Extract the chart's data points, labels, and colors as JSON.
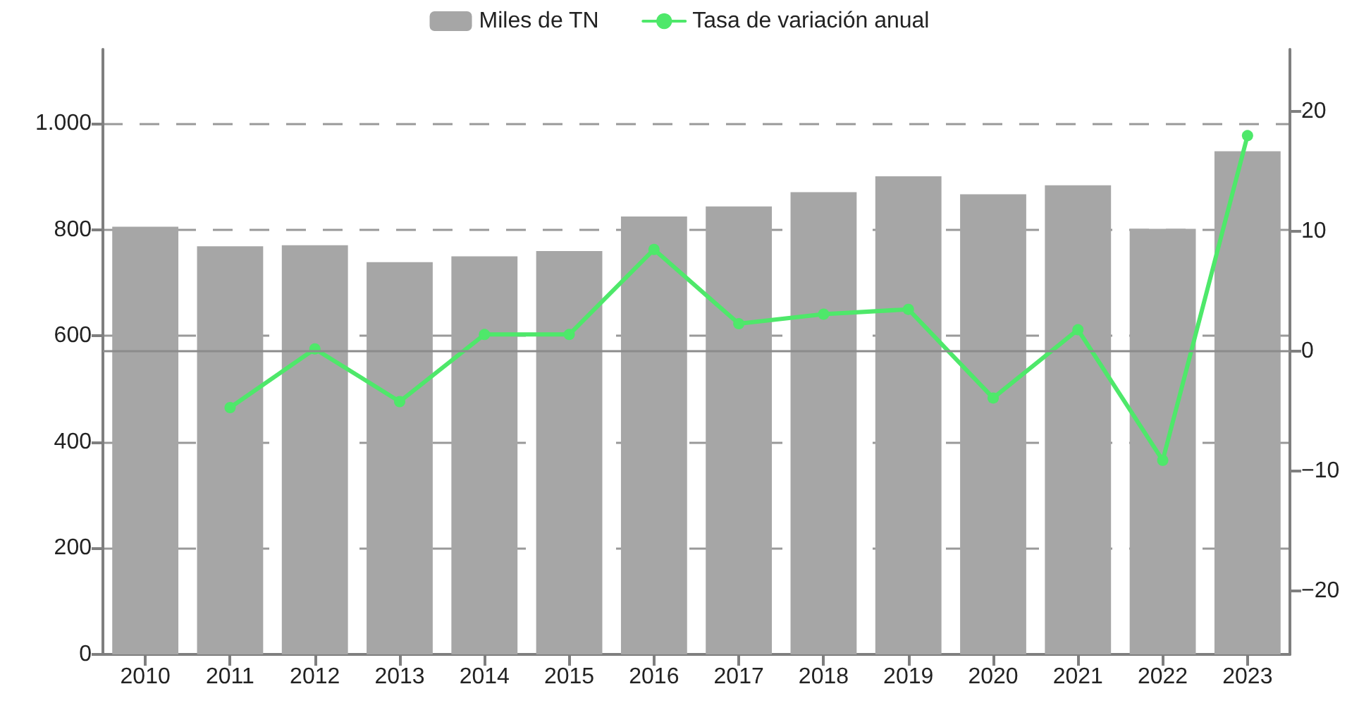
{
  "chart_data": {
    "type": "bar",
    "categories": [
      "2010",
      "2011",
      "2012",
      "2013",
      "2014",
      "2015",
      "2016",
      "2017",
      "2018",
      "2019",
      "2020",
      "2021",
      "2022",
      "2023"
    ],
    "series": [
      {
        "name": "Miles de TN",
        "color": "#a6a6a6",
        "values": [
          806,
          769,
          771,
          739,
          750,
          760,
          825,
          844,
          871,
          901,
          867,
          884,
          802,
          948
        ]
      },
      {
        "name": "Tasa de variación anual",
        "type": "line",
        "axis": "y2",
        "color": "#4ee86a",
        "marker": "circle",
        "values": [
          null,
          -4.7,
          0.2,
          -4.2,
          1.4,
          1.4,
          8.5,
          2.3,
          3.1,
          3.5,
          -3.9,
          1.8,
          -9.1,
          18.0
        ]
      }
    ],
    "ylim": [
      0,
      1140
    ],
    "yticks": [
      0,
      200,
      400,
      600,
      800,
      {
        "value": 1000,
        "label": "1.000"
      }
    ],
    "y2lim": [
      -25.3,
      25.2
    ],
    "y2ticks": [
      {
        "value": -20,
        "label": "−20"
      },
      {
        "value": -10,
        "label": "−10"
      },
      0,
      10,
      20
    ],
    "ref_lines": [
      {
        "axis": "y2",
        "value": 0,
        "color": "#8c8c8c"
      }
    ],
    "grid": "y",
    "legend": "top"
  }
}
